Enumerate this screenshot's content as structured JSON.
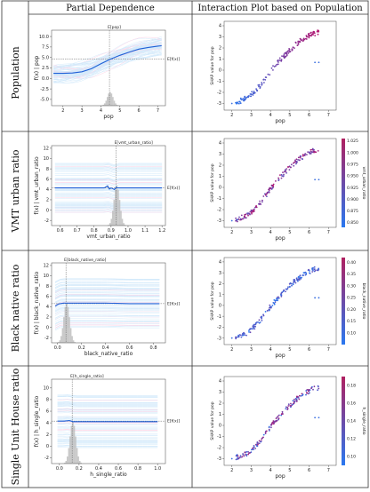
{
  "headers": {
    "col1": "Partial Dependence",
    "col2": "Interaction Plot based on Population"
  },
  "rows": [
    {
      "label": "Population",
      "pdp": {
        "xlabel": "pop",
        "ylabel": "f(x) | pop",
        "annotation_top": "E[pop]",
        "annotation_right": "E[f(x)]",
        "xticks": [
          2,
          3,
          4,
          5,
          6,
          7
        ],
        "yticks": [
          -5.0,
          -2.5,
          0.0,
          2.5,
          5.0,
          7.5,
          10.0
        ],
        "xlim": [
          1.4,
          7.4
        ],
        "ylim": [
          -6.5,
          11.5
        ]
      },
      "interaction": {
        "xlabel": "pop",
        "ylabel": "SHAP value for pop",
        "xticks": [
          2,
          3,
          4,
          5,
          6,
          7
        ],
        "yticks": [
          -3,
          -2,
          -1,
          0,
          1,
          2,
          3,
          4
        ],
        "xlim": [
          1.6,
          7.4
        ],
        "ylim": [
          -3.6,
          4.4
        ],
        "colorbar": null
      }
    },
    {
      "label": "VMT urban ratio",
      "pdp": {
        "xlabel": "vmt_urban_ratio",
        "ylabel": "f(x) | vmt_urban_ratio",
        "annotation_top": "E[vmt_urban_ratio]",
        "annotation_right": "E[f(x)]",
        "xticks": [
          0.6,
          0.7,
          0.8,
          0.9,
          1.0,
          1.1,
          1.2
        ],
        "yticks": [
          -2,
          0,
          2,
          4,
          6,
          8,
          10,
          12
        ],
        "xlim": [
          0.55,
          1.22
        ],
        "ylim": [
          -3,
          12.5
        ]
      },
      "interaction": {
        "xlabel": "pop",
        "ylabel": "SHAP value for pop",
        "xticks": [
          2,
          3,
          4,
          5,
          6,
          7
        ],
        "yticks": [
          -3,
          -2,
          -1,
          0,
          1,
          2,
          3,
          4
        ],
        "xlim": [
          1.6,
          7.4
        ],
        "ylim": [
          -3.6,
          4.4
        ],
        "colorbar": {
          "label": "vmt_urban_ratio",
          "ticks": [
            0.85,
            0.875,
            0.9,
            0.925,
            0.95,
            0.975,
            1.0,
            1.025
          ],
          "tick_labels": [
            "0.850",
            "0.875",
            "0.900",
            "0.925",
            "0.950",
            "0.975",
            "1.000",
            "1.025"
          ],
          "range": [
            0.84,
            1.03
          ]
        }
      }
    },
    {
      "label": "Black native ratio",
      "pdp": {
        "xlabel": "black_native_ratio",
        "ylabel": "f(x) | black_native_ratio",
        "annotation_top": "E[black_native_ratio]",
        "annotation_right": "E[f(x)]",
        "xticks": [
          0.0,
          0.2,
          0.4,
          0.6,
          0.8
        ],
        "yticks": [
          -2,
          0,
          2,
          4,
          6,
          8,
          10,
          12
        ],
        "xlim": [
          -0.05,
          0.9
        ],
        "ylim": [
          -3,
          12.5
        ]
      },
      "interaction": {
        "xlabel": "pop",
        "ylabel": "SHAP value for pop",
        "xticks": [
          2,
          3,
          4,
          5,
          6,
          7
        ],
        "yticks": [
          -3,
          -2,
          -1,
          0,
          1,
          2,
          3,
          4
        ],
        "xlim": [
          1.6,
          7.4
        ],
        "ylim": [
          -3.6,
          4.4
        ],
        "colorbar": {
          "label": "black_native_ratio",
          "ticks": [
            0.1,
            0.15,
            0.2,
            0.25,
            0.3,
            0.35,
            0.4
          ],
          "tick_labels": [
            "0.10",
            "0.15",
            "0.20",
            "0.25",
            "0.30",
            "0.35",
            "0.40"
          ],
          "range": [
            0.05,
            0.42
          ]
        }
      }
    },
    {
      "label": "Single Unit House ratio",
      "pdp": {
        "xlabel": "h_single_ratio",
        "ylabel": "f(x) | h_single_ratio",
        "annotation_top": "E[h_single_ratio]",
        "annotation_right": "E[f(x)]",
        "xticks": [
          0.0,
          0.2,
          0.4,
          0.6,
          0.8,
          1.0
        ],
        "yticks": [
          -2,
          0,
          2,
          4,
          6,
          8,
          10
        ],
        "xlim": [
          -0.08,
          1.08
        ],
        "ylim": [
          -3,
          11.5
        ]
      },
      "interaction": {
        "xlabel": "pop",
        "ylabel": "SHAP value for pop",
        "xticks": [
          2,
          3,
          4,
          5,
          6,
          7
        ],
        "yticks": [
          -3,
          -2,
          -1,
          0,
          1,
          2,
          3,
          4
        ],
        "xlim": [
          1.6,
          7.4
        ],
        "ylim": [
          -3.6,
          4.4
        ],
        "colorbar": {
          "label": "h_single_ratio",
          "ticks": [
            0.1,
            0.12,
            0.14,
            0.16,
            0.18
          ],
          "tick_labels": [
            "0.10",
            "0.12",
            "0.14",
            "0.16",
            "0.18"
          ],
          "range": [
            0.09,
            0.19
          ]
        }
      }
    }
  ],
  "chart_data": [
    {
      "type": "line",
      "panel": "pdp-population",
      "xlabel": "pop",
      "ylabel": "f(x) | pop",
      "x": [
        1.5,
        2,
        2.5,
        3,
        3.5,
        4,
        4.5,
        5,
        5.5,
        6,
        6.5,
        7,
        7.2
      ],
      "y": [
        1.2,
        1.2,
        1.3,
        1.6,
        2.3,
        3.5,
        4.6,
        5.5,
        6.3,
        7.0,
        7.4,
        7.7,
        7.8
      ],
      "expected_x": 4.45,
      "expected_fx": 4.6
    },
    {
      "type": "line",
      "panel": "pdp-vmt_urban_ratio",
      "xlabel": "vmt_urban_ratio",
      "ylabel": "f(x) | vmt_urban_ratio",
      "x": [
        0.57,
        0.7,
        0.8,
        0.86,
        0.88,
        0.89,
        0.9,
        0.92,
        0.93,
        0.94,
        1.0,
        1.1,
        1.2
      ],
      "y": [
        4.3,
        4.3,
        4.3,
        4.3,
        4.7,
        4.1,
        4.3,
        4.0,
        4.4,
        4.3,
        4.3,
        4.3,
        4.3
      ],
      "expected_x": 0.93,
      "expected_fx": 4.3
    },
    {
      "type": "line",
      "panel": "pdp-black_native_ratio",
      "xlabel": "black_native_ratio",
      "ylabel": "f(x) | black_native_ratio",
      "x": [
        -0.02,
        0.0,
        0.02,
        0.05,
        0.08,
        0.1,
        0.2,
        0.4,
        0.6,
        0.8,
        0.85
      ],
      "y": [
        4.1,
        4.4,
        4.6,
        4.7,
        4.7,
        4.7,
        4.7,
        4.7,
        4.6,
        4.6,
        4.6
      ],
      "expected_x": 0.07,
      "expected_fx": 4.6
    },
    {
      "type": "line",
      "panel": "pdp-h_single_ratio",
      "xlabel": "h_single_ratio",
      "ylabel": "f(x) | h_single_ratio",
      "x": [
        -0.02,
        0.05,
        0.1,
        0.12,
        0.14,
        0.2,
        0.4,
        0.6,
        0.8,
        1.0
      ],
      "y": [
        4.3,
        4.3,
        4.4,
        4.3,
        4.2,
        4.2,
        4.2,
        4.2,
        4.2,
        4.2
      ],
      "expected_x": 0.13,
      "expected_fx": 4.3
    },
    {
      "type": "scatter",
      "panel": "interaction-pop",
      "xlabel": "pop",
      "ylabel": "SHAP value for pop",
      "x": [
        2.0,
        2.4,
        2.8,
        3.0,
        3.2,
        3.5,
        3.8,
        4.0,
        4.3,
        4.6,
        5.0,
        5.3,
        5.6,
        6.0,
        6.2,
        6.5,
        7.0
      ],
      "y": [
        -3.0,
        -2.8,
        -2.5,
        -2.2,
        -1.9,
        -1.3,
        -0.6,
        -0.1,
        0.5,
        1.1,
        1.8,
        2.3,
        2.7,
        3.1,
        3.3,
        3.4,
        -0.3
      ]
    }
  ]
}
